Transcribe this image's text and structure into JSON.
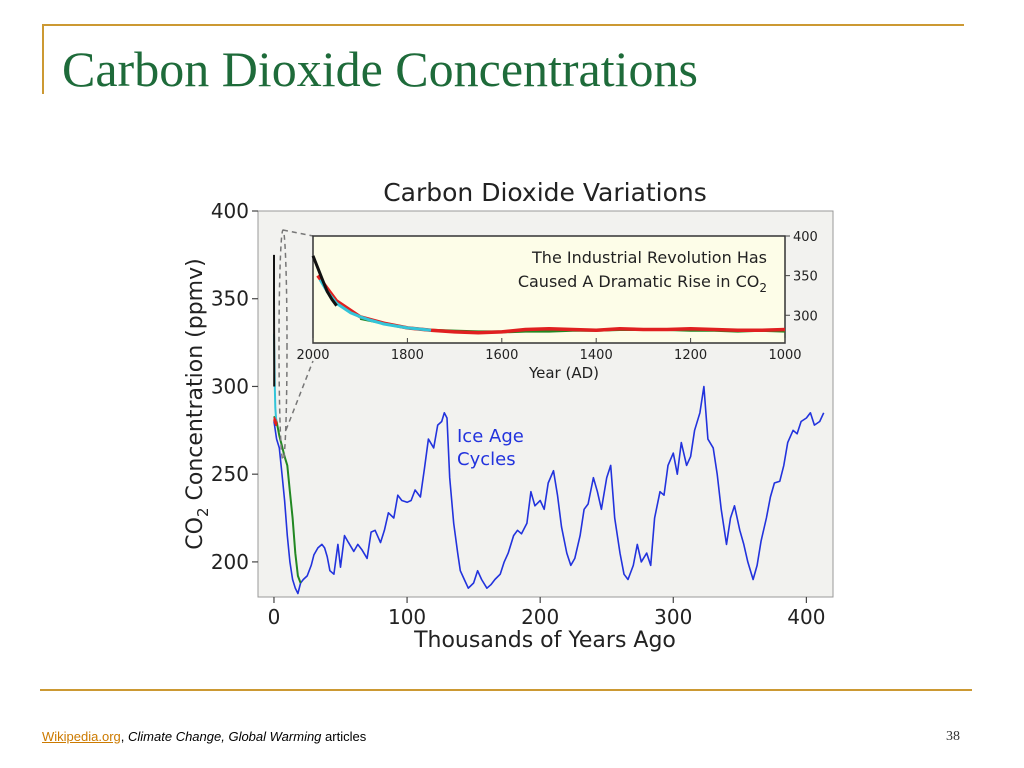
{
  "slide": {
    "title": "Carbon Dioxide Concentrations",
    "footer": {
      "link": "Wikipedia.org",
      "sep": ",",
      "italic": "Climate Change, Global Warming",
      "rest": "articles"
    },
    "page_number": "38"
  },
  "colors": {
    "title_green": "#1e6b3a",
    "rule_gold": "#cc9933",
    "ice_age_blue": "#2233dd",
    "modern_black": "#111111",
    "cyan": "#33c4d8",
    "red": "#e02020",
    "green": "#228822",
    "plot_bg": "#f2f2ef"
  },
  "chart_data": [
    {
      "type": "line",
      "title": "Carbon Dioxide Variations",
      "xlabel": "Thousands of Years Ago",
      "ylabel_parts": [
        "CO",
        "2",
        " Concentration (ppmv)"
      ],
      "xlim": [
        -12,
        420
      ],
      "ylim": [
        180,
        400
      ],
      "xticks": [
        0,
        100,
        200,
        300,
        400
      ],
      "yticks": [
        200,
        250,
        300,
        350,
        400
      ],
      "annotation": [
        "Ice Age",
        "Cycles"
      ],
      "series": [
        {
          "color": "#2233dd",
          "x": [
            0,
            2,
            4,
            6,
            8,
            10,
            12,
            14,
            16,
            18,
            20,
            22,
            25,
            28,
            30,
            33,
            36,
            38,
            40,
            42,
            45,
            48,
            50,
            53,
            56,
            60,
            63,
            66,
            70,
            73,
            76,
            80,
            83,
            86,
            90,
            93,
            96,
            100,
            103,
            106,
            110,
            113,
            116,
            120,
            123,
            126,
            128,
            130,
            132,
            135,
            138,
            140,
            143,
            146,
            150,
            153,
            156,
            160,
            163,
            166,
            170,
            173,
            176,
            180,
            183,
            186,
            190,
            193,
            196,
            200,
            203,
            206,
            210,
            213,
            216,
            220,
            223,
            226,
            230,
            233,
            236,
            240,
            243,
            246,
            250,
            253,
            256,
            260,
            263,
            266,
            270,
            273,
            276,
            280,
            283,
            286,
            290,
            293,
            296,
            300,
            303,
            306,
            310,
            313,
            316,
            320,
            323,
            326,
            330,
            333,
            336,
            340,
            343,
            346,
            350,
            353,
            356,
            360,
            363,
            366,
            370,
            373,
            376,
            380,
            383,
            386,
            390,
            393,
            396,
            400,
            403,
            406,
            410,
            413
          ],
          "y": [
            280,
            270,
            265,
            250,
            235,
            215,
            200,
            190,
            185,
            182,
            188,
            190,
            192,
            198,
            204,
            208,
            210,
            208,
            203,
            195,
            193,
            210,
            197,
            215,
            211,
            206,
            210,
            207,
            202,
            217,
            218,
            211,
            218,
            228,
            225,
            238,
            235,
            234,
            235,
            241,
            237,
            253,
            270,
            265,
            278,
            280,
            285,
            282,
            248,
            222,
            205,
            195,
            190,
            185,
            188,
            195,
            190,
            185,
            187,
            190,
            193,
            200,
            205,
            215,
            218,
            216,
            222,
            240,
            232,
            235,
            230,
            245,
            252,
            238,
            220,
            205,
            198,
            202,
            215,
            230,
            233,
            248,
            240,
            230,
            248,
            255,
            225,
            205,
            193,
            190,
            198,
            210,
            200,
            205,
            198,
            225,
            240,
            238,
            255,
            262,
            250,
            268,
            255,
            260,
            275,
            285,
            300,
            270,
            265,
            250,
            230,
            210,
            225,
            232,
            218,
            210,
            200,
            190,
            198,
            212,
            225,
            237,
            245,
            246,
            255,
            268,
            275,
            273,
            280,
            282,
            285,
            278,
            280,
            285
          ]
        },
        {
          "color": "#228822",
          "x": [
            0,
            2,
            4,
            6,
            8,
            10,
            12,
            14,
            16,
            18,
            20
          ],
          "y": [
            283,
            280,
            272,
            266,
            260,
            255,
            240,
            225,
            205,
            192,
            188
          ]
        },
        {
          "color": "#33c4d8",
          "x": [
            0,
            0.3,
            0.6,
            1,
            1.5,
            2
          ],
          "y": [
            330,
            315,
            300,
            288,
            282,
            280
          ]
        },
        {
          "color": "#e02020",
          "x": [
            0.2,
            0.5,
            0.8,
            1.2,
            1.6,
            2
          ],
          "y": [
            280,
            282,
            279,
            281,
            278,
            280
          ]
        },
        {
          "color": "#111111",
          "x": [
            0,
            0.05,
            0.1,
            0.15,
            0.2
          ],
          "y": [
            375,
            350,
            330,
            312,
            300
          ]
        }
      ]
    },
    {
      "type": "line",
      "title_line1": "The Industrial Revolution Has",
      "title_line2_parts": [
        "Caused A Dramatic Rise in CO",
        "2"
      ],
      "xlabel": "Year (AD)",
      "xlim": [
        2000,
        1000
      ],
      "ylim": [
        265,
        400
      ],
      "xticks": [
        2000,
        1800,
        1600,
        1400,
        1200,
        1000
      ],
      "yticks": [
        300,
        350,
        400
      ],
      "series": [
        {
          "color": "#228822",
          "x": [
            1900,
            1850,
            1800,
            1750,
            1700,
            1650,
            1600,
            1550,
            1500,
            1450,
            1400,
            1350,
            1300,
            1250,
            1200,
            1150,
            1100,
            1050,
            1000
          ],
          "y": [
            296,
            290,
            284,
            281,
            280,
            279,
            279,
            280,
            280,
            281,
            281,
            282,
            282,
            282,
            281,
            281,
            280,
            281,
            280
          ]
        },
        {
          "color": "#e02020",
          "x": [
            1990,
            1950,
            1900,
            1850,
            1800,
            1750,
            1700,
            1650,
            1600,
            1550,
            1500,
            1450,
            1400,
            1350,
            1300,
            1250,
            1200,
            1150,
            1100,
            1050,
            1000
          ],
          "y": [
            350,
            318,
            298,
            290,
            284,
            281,
            279,
            278,
            279,
            282,
            283,
            282,
            281,
            283,
            282,
            282,
            283,
            282,
            281,
            281,
            282
          ]
        },
        {
          "color": "#33c4d8",
          "x": [
            1985,
            1970,
            1950,
            1920,
            1900,
            1880,
            1850,
            1820,
            1800,
            1780,
            1750
          ],
          "y": [
            345,
            330,
            315,
            303,
            298,
            294,
            289,
            286,
            284,
            283,
            281
          ]
        },
        {
          "color": "#111111",
          "x": [
            2000,
            1990,
            1980,
            1970,
            1960,
            1950
          ],
          "y": [
            375,
            360,
            345,
            330,
            320,
            312
          ]
        }
      ]
    }
  ]
}
